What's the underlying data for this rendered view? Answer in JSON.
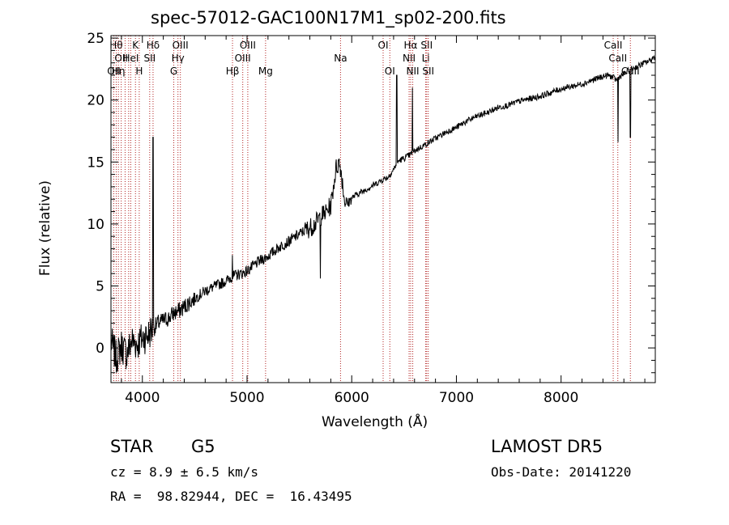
{
  "info": {
    "object_class": "STAR",
    "subclass": "G5",
    "survey": "LAMOST DR5",
    "cz": "cz = 8.9 ± 6.5 km/s",
    "obs_date": "Obs-Date: 20141220",
    "coords": "RA =  98.82944, DEC =  16.43495"
  },
  "chart_data": {
    "type": "line",
    "title": "spec-57012-GAC100N17M1_sp02-200.fits",
    "xlabel": "Wavelength (Å)",
    "ylabel": "Flux (relative)",
    "xlim": [
      3700,
      8900
    ],
    "ylim": [
      -2.8,
      25.2
    ],
    "xticks": [
      4000,
      5000,
      6000,
      7000,
      8000
    ],
    "yticks": [
      0,
      5,
      10,
      15,
      20,
      25
    ],
    "grid": false,
    "line_color": "#000000",
    "marker_color": "#b22222",
    "series": [
      {
        "x": [
          3700,
          3750,
          3800,
          3850,
          3900,
          3950,
          4000,
          4050,
          4080,
          4100,
          4150,
          4200,
          4250,
          4300,
          4350,
          4400,
          4450,
          4500,
          4600,
          4700,
          4800,
          4850,
          4900,
          4950,
          5000,
          5100,
          5200,
          5300,
          5400,
          5500,
          5600,
          5650,
          5700,
          5750,
          5800,
          5850,
          5880,
          5900,
          5930,
          5960,
          6000,
          6050,
          6100,
          6200,
          6300,
          6350,
          6400,
          6430,
          6450,
          6500,
          6560,
          6600,
          6700,
          6800,
          6900,
          7000,
          7100,
          7200,
          7300,
          7400,
          7500,
          7600,
          7700,
          7800,
          7900,
          8000,
          8100,
          8200,
          8300,
          8400,
          8450,
          8500,
          8530,
          8560,
          8600,
          8650,
          8670,
          8700,
          8750,
          8800,
          8850,
          8880,
          8900
        ],
        "y": [
          0.5,
          -0.8,
          0.2,
          -0.5,
          0.6,
          0.3,
          0.8,
          1.0,
          1.4,
          1.5,
          2.0,
          2.2,
          2.4,
          2.8,
          3.0,
          3.3,
          3.7,
          4.0,
          4.6,
          5.0,
          5.4,
          5.7,
          5.9,
          6.0,
          6.2,
          6.9,
          7.4,
          8.1,
          8.6,
          9.2,
          9.7,
          10.0,
          10.6,
          10.9,
          11.5,
          14.5,
          15.0,
          14.2,
          12.0,
          11.6,
          12.1,
          12.4,
          12.6,
          13.1,
          13.6,
          13.8,
          14.4,
          14.9,
          15.1,
          15.3,
          15.6,
          15.9,
          16.4,
          16.9,
          17.4,
          17.8,
          18.3,
          18.7,
          19.0,
          19.4,
          19.6,
          19.9,
          20.1,
          20.3,
          20.6,
          20.9,
          21.1,
          21.3,
          21.6,
          21.9,
          22.0,
          21.8,
          21.6,
          21.9,
          22.1,
          22.4,
          22.5,
          22.6,
          22.8,
          23.0,
          23.2,
          23.4,
          23.5
        ]
      }
    ],
    "features": [
      {
        "x": 4102,
        "y": 17.0,
        "label": "Hδ emission"
      },
      {
        "x": 4861,
        "y": 7.5,
        "label": "Hβ emission"
      },
      {
        "x": 5700,
        "y": 5.6,
        "label": "absorption dip"
      },
      {
        "x": 6430,
        "y": 22.0,
        "label": "emission spike"
      },
      {
        "x": 6580,
        "y": 21.0,
        "label": "Hα emission"
      },
      {
        "x": 8545,
        "y": 16.6,
        "label": "CaII"
      },
      {
        "x": 8662,
        "y": 17.0,
        "label": "CaII"
      }
    ],
    "line_markers": [
      {
        "x": 3727,
        "label": "OII",
        "row": 3
      },
      {
        "x": 3750,
        "label": "Hθ",
        "row": 1
      },
      {
        "x": 3771,
        "label": "Hη",
        "row": 3
      },
      {
        "x": 3798,
        "label": "OII",
        "row": 2
      },
      {
        "x": 3835,
        "label": "",
        "row": 0
      },
      {
        "x": 3869,
        "label": "",
        "row": 0
      },
      {
        "x": 3889,
        "label": "HeI",
        "row": 2
      },
      {
        "x": 3934,
        "label": "K",
        "row": 1
      },
      {
        "x": 3970,
        "label": "H",
        "row": 3
      },
      {
        "x": 4070,
        "label": "SII",
        "row": 2
      },
      {
        "x": 4102,
        "label": "Hδ",
        "row": 1
      },
      {
        "x": 4300,
        "label": "G",
        "row": 3
      },
      {
        "x": 4340,
        "label": "Hγ",
        "row": 2
      },
      {
        "x": 4363,
        "label": "OIII",
        "row": 1
      },
      {
        "x": 4861,
        "label": "Hβ",
        "row": 3
      },
      {
        "x": 4959,
        "label": "OIII",
        "row": 2
      },
      {
        "x": 5007,
        "label": "OIII",
        "row": 1
      },
      {
        "x": 5177,
        "label": "Mg",
        "row": 3
      },
      {
        "x": 5893,
        "label": "Na",
        "row": 2
      },
      {
        "x": 6300,
        "label": "OI",
        "row": 1
      },
      {
        "x": 6364,
        "label": "OI",
        "row": 3
      },
      {
        "x": 6548,
        "label": "NII",
        "row": 2
      },
      {
        "x": 6563,
        "label": "Hα",
        "row": 1
      },
      {
        "x": 6583,
        "label": "NII",
        "row": 3
      },
      {
        "x": 6707,
        "label": "Li",
        "row": 2
      },
      {
        "x": 6716,
        "label": "SII",
        "row": 1
      },
      {
        "x": 6731,
        "label": "SII",
        "row": 3
      },
      {
        "x": 8498,
        "label": "CaII",
        "row": 1
      },
      {
        "x": 8542,
        "label": "CaII",
        "row": 2
      },
      {
        "x": 8662,
        "label": "CaII",
        "row": 3
      }
    ]
  }
}
